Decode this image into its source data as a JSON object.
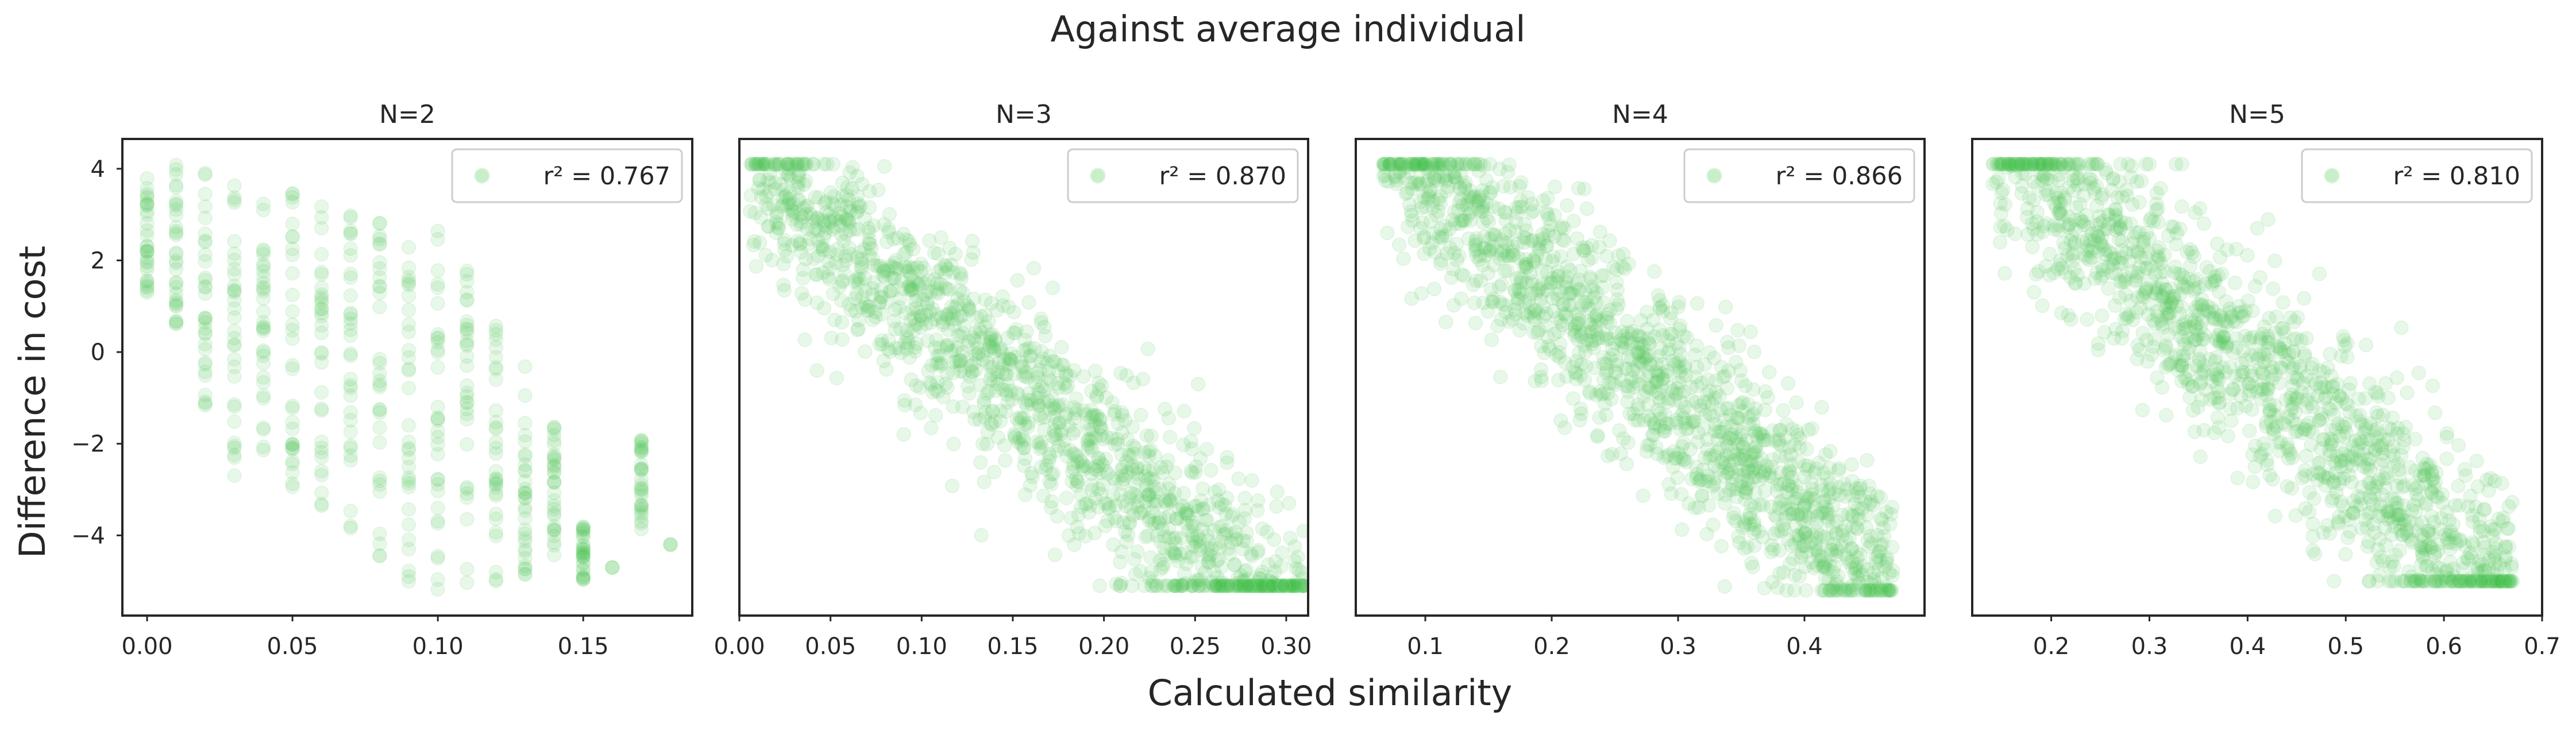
{
  "figure": {
    "title": "Against average individual",
    "xlabel": "Calculated similarity",
    "ylabel": "Difference in cost"
  },
  "style": {
    "point_color": "#44c14a",
    "point_edge": "#8fdc93",
    "point_opacity": 0.13,
    "frame_color": "#262626",
    "text_color": "#262626"
  },
  "chart_data": [
    {
      "type": "scatter",
      "title": "N=2",
      "legend": "r² = 0.767",
      "legend_position": "top-right",
      "grid": false,
      "xlim": [
        -0.0085,
        0.1875
      ],
      "ylim": [
        -5.75,
        4.65
      ],
      "xticks": [
        0.0,
        0.05,
        0.1,
        0.15
      ],
      "xtick_labels": [
        "0.00",
        "0.05",
        "0.10",
        "0.15"
      ],
      "yticks": [
        4,
        2,
        0,
        -2,
        -4
      ],
      "ytick_labels": [
        "4",
        "2",
        "0",
        "−2",
        "−4"
      ],
      "x_values": [
        0.0,
        0.01,
        0.02,
        0.03,
        0.04,
        0.05,
        0.06,
        0.07,
        0.08,
        0.09,
        0.1,
        0.11,
        0.12,
        0.13,
        0.14,
        0.15,
        0.16,
        0.17,
        0.18
      ],
      "y_range": [
        [
          1.2,
          4.0
        ],
        [
          0.5,
          4.1
        ],
        [
          -1.3,
          4.0
        ],
        [
          -2.7,
          3.9
        ],
        [
          -2.6,
          3.7
        ],
        [
          -3.0,
          3.5
        ],
        [
          -3.5,
          3.3
        ],
        [
          -4.0,
          3.0
        ],
        [
          -4.9,
          2.9
        ],
        [
          -5.2,
          2.4
        ],
        [
          -5.2,
          2.7
        ],
        [
          -5.2,
          2.0
        ],
        [
          -5.0,
          0.7
        ],
        [
          -4.9,
          -0.3
        ],
        [
          -4.9,
          -1.5
        ],
        [
          -5.0,
          -3.8
        ],
        [
          -4.7,
          -4.7
        ],
        [
          -3.9,
          -1.9
        ],
        [
          -4.2,
          -4.2
        ]
      ],
      "n_points": 620,
      "seed": 11
    },
    {
      "type": "scatter",
      "title": "N=3",
      "legend": "r² = 0.870",
      "legend_position": "top-right",
      "grid": false,
      "xlim": [
        0.0,
        0.312
      ],
      "ylim": [
        -5.75,
        4.65
      ],
      "xticks": [
        0.0,
        0.05,
        0.1,
        0.15,
        0.2,
        0.25,
        0.3
      ],
      "xtick_labels": [
        "0.00",
        "0.05",
        "0.10",
        "0.15",
        "0.20",
        "0.25",
        "0.30"
      ],
      "yticks": [],
      "ytick_labels": [],
      "x_range": [
        0.005,
        0.31
      ],
      "line": {
        "slope": -34.5,
        "intercept": 4.4
      },
      "spread": 1.05,
      "y_clip": [
        -5.1,
        4.1
      ],
      "n_points": 1400,
      "seed": 23
    },
    {
      "type": "scatter",
      "title": "N=4",
      "legend": "r² = 0.866",
      "legend_position": "top-right",
      "grid": false,
      "xlim": [
        0.045,
        0.495
      ],
      "ylim": [
        -5.75,
        4.65
      ],
      "xticks": [
        0.1,
        0.2,
        0.3,
        0.4
      ],
      "xtick_labels": [
        "0.1",
        "0.2",
        "0.3",
        "0.4"
      ],
      "yticks": [],
      "ytick_labels": [],
      "x_range": [
        0.065,
        0.47
      ],
      "line": {
        "slope": -24.0,
        "intercept": 6.1
      },
      "spread": 1.05,
      "y_clip": [
        -5.2,
        4.1
      ],
      "n_points": 1400,
      "seed": 37
    },
    {
      "type": "scatter",
      "title": "N=5",
      "legend": "r² = 0.810",
      "legend_position": "top-right",
      "grid": false,
      "xlim": [
        0.1195,
        0.7
      ],
      "ylim": [
        -5.75,
        4.65
      ],
      "xticks": [
        0.2,
        0.3,
        0.4,
        0.5,
        0.6,
        0.7
      ],
      "xtick_labels": [
        "0.2",
        "0.3",
        "0.4",
        "0.5",
        "0.6",
        "0.7"
      ],
      "yticks": [],
      "ytick_labels": [],
      "x_range": [
        0.14,
        0.67
      ],
      "line": {
        "slope": -19.0,
        "intercept": 7.3
      },
      "spread": 1.15,
      "y_clip": [
        -5.0,
        4.1
      ],
      "n_points": 1400,
      "seed": 53
    }
  ]
}
